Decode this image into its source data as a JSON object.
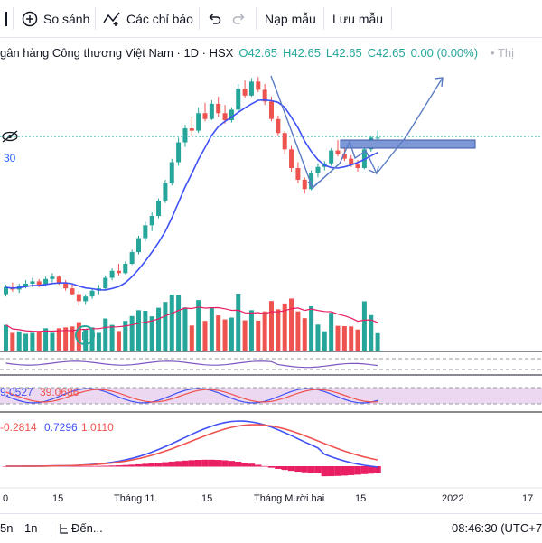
{
  "toolbar": {
    "compare_label": "So sánh",
    "indicators_label": "Các chỉ báo",
    "load_template_label": "Nạp mẫu",
    "save_template_label": "Lưu mẫu"
  },
  "legend": {
    "symbol": "gân hàng Công thương Việt Nam · 1D · HSX",
    "open": "O42.65",
    "high": "H42.65",
    "low": "L42.65",
    "close": "C42.65",
    "change": "0.00 (0.00%)",
    "tail": "• Thị"
  },
  "price_label": "30",
  "rsi_values": [
    "9.0527",
    "39.0686"
  ],
  "macd_values": [
    "-0.2814",
    "0.7296",
    "1.0110"
  ],
  "x_axis": {
    "labels": [
      "0",
      "15",
      "Tháng 11",
      "15",
      "Tháng Mười hai",
      "15",
      "2022",
      "17"
    ]
  },
  "bottombar": {
    "range_5n": "5n",
    "range_1n": "1n",
    "goto_label": "Đến...",
    "time": "08:46:30 (UTC+7"
  },
  "colors": {
    "up": "#26a69a",
    "down": "#ef5350",
    "ma": "#3f51f5",
    "rsi_band": "#e1bee7",
    "macd_hist": "#e91e63",
    "drawing": "#5b7cc4",
    "zone": "#7e97d6"
  },
  "chart_data": {
    "type": "candlestick",
    "note_series": "daily candles approx",
    "candles": [
      [
        26.0,
        26.8,
        25.8,
        26.6
      ],
      [
        26.6,
        27.0,
        26.2,
        26.4
      ],
      [
        26.4,
        26.9,
        26.1,
        26.7
      ],
      [
        26.7,
        27.2,
        26.5,
        26.9
      ],
      [
        26.9,
        27.4,
        26.6,
        27.1
      ],
      [
        27.1,
        27.3,
        26.6,
        26.8
      ],
      [
        26.8,
        27.5,
        26.7,
        27.3
      ],
      [
        27.3,
        27.8,
        27.0,
        27.5
      ],
      [
        27.5,
        27.6,
        26.8,
        27.0
      ],
      [
        27.0,
        27.2,
        26.3,
        26.5
      ],
      [
        26.5,
        26.9,
        25.9,
        26.0
      ],
      [
        26.0,
        26.3,
        25.0,
        25.4
      ],
      [
        25.4,
        26.0,
        25.1,
        25.8
      ],
      [
        25.8,
        26.5,
        25.6,
        26.3
      ],
      [
        26.3,
        26.8,
        26.0,
        26.5
      ],
      [
        26.5,
        27.6,
        26.4,
        27.4
      ],
      [
        27.4,
        28.2,
        27.2,
        28.0
      ],
      [
        28.0,
        28.6,
        27.6,
        27.8
      ],
      [
        27.8,
        28.8,
        27.7,
        28.6
      ],
      [
        28.6,
        29.8,
        28.5,
        29.6
      ],
      [
        29.6,
        31.0,
        29.4,
        30.8
      ],
      [
        30.8,
        32.2,
        30.5,
        31.9
      ],
      [
        31.9,
        33.0,
        31.4,
        32.7
      ],
      [
        32.7,
        34.2,
        32.5,
        34.0
      ],
      [
        34.0,
        35.8,
        33.8,
        35.5
      ],
      [
        35.5,
        37.6,
        35.3,
        37.3
      ],
      [
        37.3,
        39.4,
        37.0,
        39.0
      ],
      [
        39.0,
        40.5,
        38.6,
        40.2
      ],
      [
        40.2,
        41.2,
        39.6,
        40.0
      ],
      [
        40.0,
        42.0,
        39.8,
        41.5
      ],
      [
        41.5,
        42.4,
        40.8,
        41.0
      ],
      [
        41.0,
        42.6,
        40.9,
        42.3
      ],
      [
        42.3,
        42.9,
        41.2,
        41.5
      ],
      [
        41.5,
        42.2,
        40.6,
        40.9
      ],
      [
        40.9,
        42.0,
        40.7,
        41.8
      ],
      [
        41.8,
        44.0,
        41.6,
        43.6
      ],
      [
        43.6,
        44.3,
        42.8,
        43.0
      ],
      [
        43.0,
        44.5,
        42.9,
        44.2
      ],
      [
        44.2,
        44.6,
        43.3,
        43.5
      ],
      [
        43.5,
        44.0,
        42.2,
        42.5
      ],
      [
        42.5,
        42.9,
        40.8,
        41.0
      ],
      [
        41.0,
        41.3,
        39.6,
        39.8
      ],
      [
        39.8,
        40.0,
        38.0,
        38.4
      ],
      [
        38.4,
        38.7,
        36.5,
        36.8
      ],
      [
        36.8,
        37.3,
        35.5,
        35.8
      ],
      [
        35.8,
        36.0,
        34.6,
        35.0
      ],
      [
        35.0,
        36.6,
        34.9,
        36.4
      ],
      [
        36.4,
        37.2,
        36.0,
        36.9
      ],
      [
        36.9,
        37.4,
        36.6,
        37.2
      ],
      [
        37.2,
        38.5,
        37.0,
        38.3
      ],
      [
        38.3,
        39.2,
        37.8,
        38.0
      ],
      [
        38.0,
        38.6,
        37.4,
        37.6
      ],
      [
        37.6,
        37.9,
        36.9,
        37.1
      ],
      [
        37.1,
        37.5,
        36.5,
        36.8
      ],
      [
        36.8,
        38.6,
        36.7,
        38.4
      ],
      [
        38.4,
        39.6,
        38.2,
        39.4
      ],
      [
        39.4,
        40.0,
        38.9,
        39.4
      ]
    ],
    "price_annotations": [
      "zone",
      "arrows"
    ]
  }
}
